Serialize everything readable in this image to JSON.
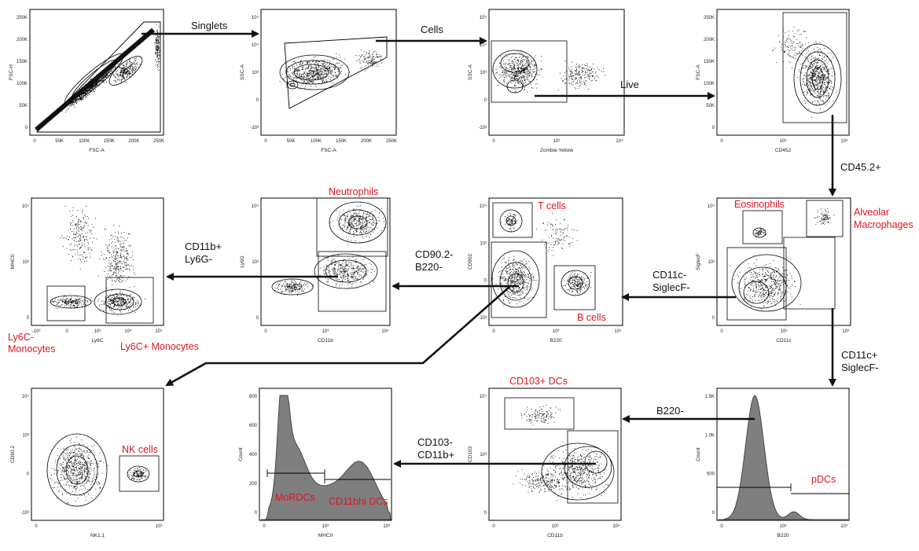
{
  "colors": {
    "population": "#e0141e",
    "arrow": "#111111",
    "hist_fill": "#7f7f7f",
    "contour": "#000000"
  },
  "flow_labels": {
    "singlets": "Singlets",
    "cells": "Cells",
    "live": "Live",
    "cd45": "CD45.2+",
    "cd11c_neg": [
      "CD11c-",
      "SiglecF-"
    ],
    "cd90_neg": [
      "CD90.2-",
      "B220-"
    ],
    "cd11b_pos": [
      "CD11b+",
      "Ly6G-"
    ],
    "cd11c_pos": [
      "CD11c+",
      "SiglecF-"
    ],
    "b220_neg": "B220-",
    "cd103_neg": [
      "CD103-",
      "CD11b+"
    ]
  },
  "populations": {
    "neutrophils": "Neutrophils",
    "t_cells": "T cells",
    "b_cells": "B cells",
    "eosinophils": "Eosinophils",
    "alveolar": [
      "Alveolar",
      "Macrophages"
    ],
    "ly6c_neg": [
      "Ly6C-",
      "Monocytes"
    ],
    "ly6c_pos": "Ly6C+ Monocytes",
    "cd103_dcs": "CD103+ DCs",
    "nk_cells": "NK cells",
    "mordcs": "MoRDCs",
    "cd11bhi_dcs": "CD11bhi DCs",
    "pdcs": "pDCs"
  },
  "panels": {
    "p1": {
      "x": "FSC-A",
      "y": "FSC-H",
      "xticks": [
        "0",
        "50K",
        "100K",
        "150K",
        "200K",
        "250K"
      ],
      "yticks": [
        "250K",
        "200K",
        "150K",
        "100K",
        "50K",
        "0"
      ]
    },
    "p2": {
      "x": "FSC-A",
      "y": "SSC-A",
      "xticks": [
        "0",
        "50K",
        "100K",
        "150K",
        "200K",
        "250K"
      ],
      "yticks": [
        "10⁵",
        "10⁴",
        "10³",
        "0",
        "-10³"
      ]
    },
    "p3": {
      "x": "Zombie Yellow",
      "y": "SSC-A",
      "xticks": [
        "0",
        "10³",
        "10⁴"
      ],
      "yticks": [
        "10⁵",
        "10⁴",
        "10³",
        "0",
        "-10³"
      ]
    },
    "p4": {
      "x": "CD452",
      "y": "FSC-A",
      "xticks": [
        "0",
        "10³",
        "10⁴"
      ],
      "yticks": [
        "250K",
        "200K",
        "150K",
        "100K",
        "50K",
        "0"
      ]
    },
    "p5": {
      "x": "Ly6C",
      "y": "MHCII",
      "xticks": [
        "-10³",
        "0",
        "10³",
        "10⁴",
        "10⁵"
      ],
      "yticks": [
        "10⁴",
        "10³",
        "0"
      ]
    },
    "p6": {
      "x": "CD11b",
      "y": "Ly6G",
      "xticks": [
        "0",
        "10³",
        "10⁴"
      ],
      "yticks": [
        "10⁴",
        "10³",
        "0"
      ]
    },
    "p7": {
      "x": "B220",
      "y": "CD902",
      "xticks": [
        "0",
        "10³",
        "10⁴"
      ],
      "yticks": [
        "10⁴",
        "10³",
        "0",
        "-10³"
      ]
    },
    "p8": {
      "x": "CD11c",
      "y": "SiglecF",
      "xticks": [
        "0",
        "10³",
        "10⁴"
      ],
      "yticks": [
        "10⁴",
        "10³",
        "0"
      ]
    },
    "p9": {
      "x": "NK1.1",
      "y": "CD90.2",
      "xticks": [
        "0",
        "10³"
      ],
      "yticks": [
        "10⁴",
        "10³",
        "0",
        "-10³"
      ]
    },
    "p10": {
      "x": "MHCII",
      "y": "Count",
      "xticks": [
        "0",
        "10³",
        "10⁴"
      ],
      "yticks": [
        "800",
        "600",
        "400",
        "200",
        "0"
      ]
    },
    "p11": {
      "x": "CD11b",
      "y": "CD103",
      "xticks": [
        "0",
        "10³",
        "10⁴"
      ],
      "yticks": [
        "10⁴",
        "10³",
        "0"
      ]
    },
    "p12": {
      "x": "B220",
      "y": "Count",
      "xticks": [
        "0",
        "10³",
        "10⁴"
      ],
      "yticks": [
        "1.5K",
        "1.0K",
        "500",
        "0"
      ]
    }
  }
}
